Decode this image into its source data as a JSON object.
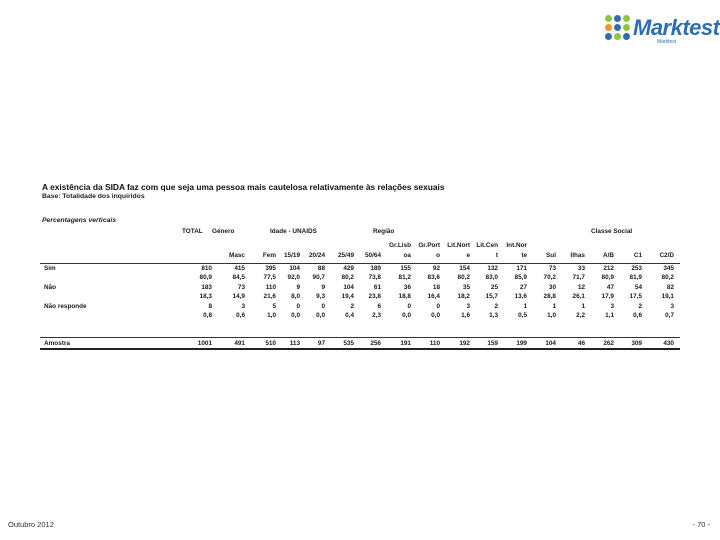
{
  "brand": {
    "name": "Marktest",
    "tagline": "Marktest",
    "dot_colors": [
      "#8cc63f",
      "#2f6db3",
      "#8cc63f",
      "#f7941d",
      "#2f6db3",
      "#8cc63f",
      "#2f6db3",
      "#8cc63f",
      "#2f6db3"
    ]
  },
  "title": "A existência da SIDA faz com que seja uma pessoa mais cautelosa relativamente às relações sexuais",
  "base": "Base: Totalidade dos inquiridos",
  "subtitle": "Percentagens verticais",
  "table": {
    "groups": [
      "TOTAL",
      "Género",
      "Idade - UNAIDS",
      "Região",
      "Classe Social"
    ],
    "columns": [
      {
        "top": "",
        "bottom": ""
      },
      {
        "top": "",
        "bottom": "Masc"
      },
      {
        "top": "",
        "bottom": "Fem"
      },
      {
        "top": "",
        "bottom": "15/19"
      },
      {
        "top": "",
        "bottom": "20/24"
      },
      {
        "top": "",
        "bottom": "25/49"
      },
      {
        "top": "",
        "bottom": "50/64"
      },
      {
        "top": "Gr.Lisb",
        "bottom": "oa"
      },
      {
        "top": "Gr.Port",
        "bottom": "o"
      },
      {
        "top": "Lit.Nort",
        "bottom": "e"
      },
      {
        "top": "Lit.Cen",
        "bottom": "t"
      },
      {
        "top": "Int.Nor",
        "bottom": "te"
      },
      {
        "top": "",
        "bottom": "Sul"
      },
      {
        "top": "",
        "bottom": "Ilhas"
      },
      {
        "top": "",
        "bottom": "A/B"
      },
      {
        "top": "",
        "bottom": "C1"
      },
      {
        "top": "",
        "bottom": "C2/D"
      }
    ],
    "rows": [
      {
        "label": "Sim",
        "n": [
          "810",
          "415",
          "395",
          "104",
          "88",
          "429",
          "189",
          "155",
          "92",
          "154",
          "132",
          "171",
          "73",
          "33",
          "212",
          "253",
          "345"
        ],
        "p": [
          "80,9",
          "84,5",
          "77,5",
          "92,0",
          "90,7",
          "80,2",
          "73,8",
          "81,2",
          "83,6",
          "80,2",
          "83,0",
          "85,9",
          "70,2",
          "71,7",
          "80,9",
          "81,9",
          "80,2"
        ]
      },
      {
        "label": "Não",
        "n": [
          "183",
          "73",
          "110",
          "9",
          "9",
          "104",
          "61",
          "36",
          "18",
          "35",
          "25",
          "27",
          "30",
          "12",
          "47",
          "54",
          "82"
        ],
        "p": [
          "18,3",
          "14,9",
          "21,6",
          "8,0",
          "9,3",
          "19,4",
          "23,8",
          "18,8",
          "16,4",
          "18,2",
          "15,7",
          "13,6",
          "28,8",
          "26,1",
          "17,9",
          "17,5",
          "19,1"
        ]
      },
      {
        "label": "Não responde",
        "n": [
          "8",
          "3",
          "5",
          "0",
          "0",
          "2",
          "6",
          "0",
          "0",
          "3",
          "2",
          "1",
          "1",
          "1",
          "3",
          "2",
          "3"
        ],
        "p": [
          "0,8",
          "0,6",
          "1,0",
          "0,0",
          "0,0",
          "0,4",
          "2,3",
          "0,0",
          "0,0",
          "1,6",
          "1,3",
          "0,5",
          "1,0",
          "2,2",
          "1,1",
          "0,6",
          "0,7"
        ]
      }
    ],
    "total": {
      "label": "Amostra",
      "n": [
        "1001",
        "491",
        "510",
        "113",
        "97",
        "535",
        "256",
        "191",
        "110",
        "192",
        "159",
        "199",
        "104",
        "46",
        "262",
        "309",
        "430"
      ]
    }
  },
  "footer": {
    "date": "Outubro 2012",
    "page": "- 70 -"
  }
}
